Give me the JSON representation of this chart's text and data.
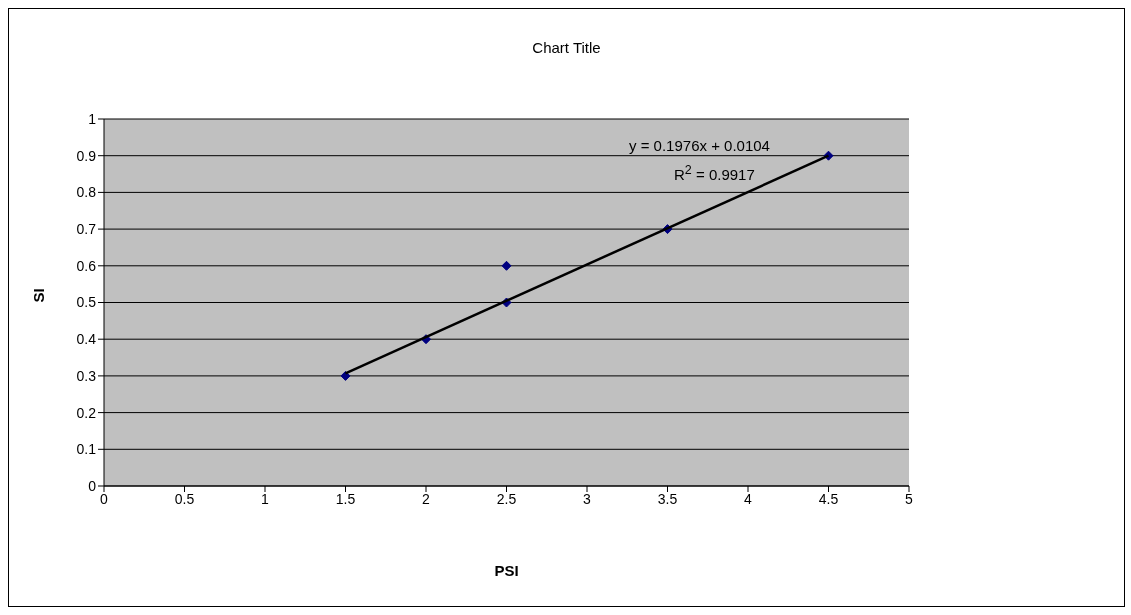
{
  "chart_data": {
    "type": "scatter",
    "title": "Chart Title",
    "xlabel": "PSI",
    "ylabel": "SI",
    "series": [
      {
        "color": "#000080",
        "marker": "diamond",
        "x": [
          1.5,
          2,
          2.5,
          2.5,
          3.5,
          4.5
        ],
        "values": [
          0.3,
          0.4,
          0.6,
          0.5,
          0.7,
          0.9
        ]
      },
      {
        "type": "line",
        "color": "#000000",
        "x": [
          1.5,
          4.5
        ],
        "values": [
          0.307,
          0.9
        ]
      }
    ],
    "annotations": [
      "y = 0.1976x + 0.0104",
      "R$^{2}$ = 0.9917"
    ],
    "xlim": [
      0,
      5
    ],
    "xticks": [
      0,
      0.5,
      1,
      1.5,
      2,
      2.5,
      3,
      3.5,
      4,
      4.5,
      5
    ],
    "ylim": [
      0,
      1
    ],
    "yticks": [
      0,
      0.1,
      0.2,
      0.3,
      0.4,
      0.5,
      0.6,
      0.7,
      0.8,
      0.9,
      1
    ],
    "grid": "y",
    "line_style": "solid"
  }
}
